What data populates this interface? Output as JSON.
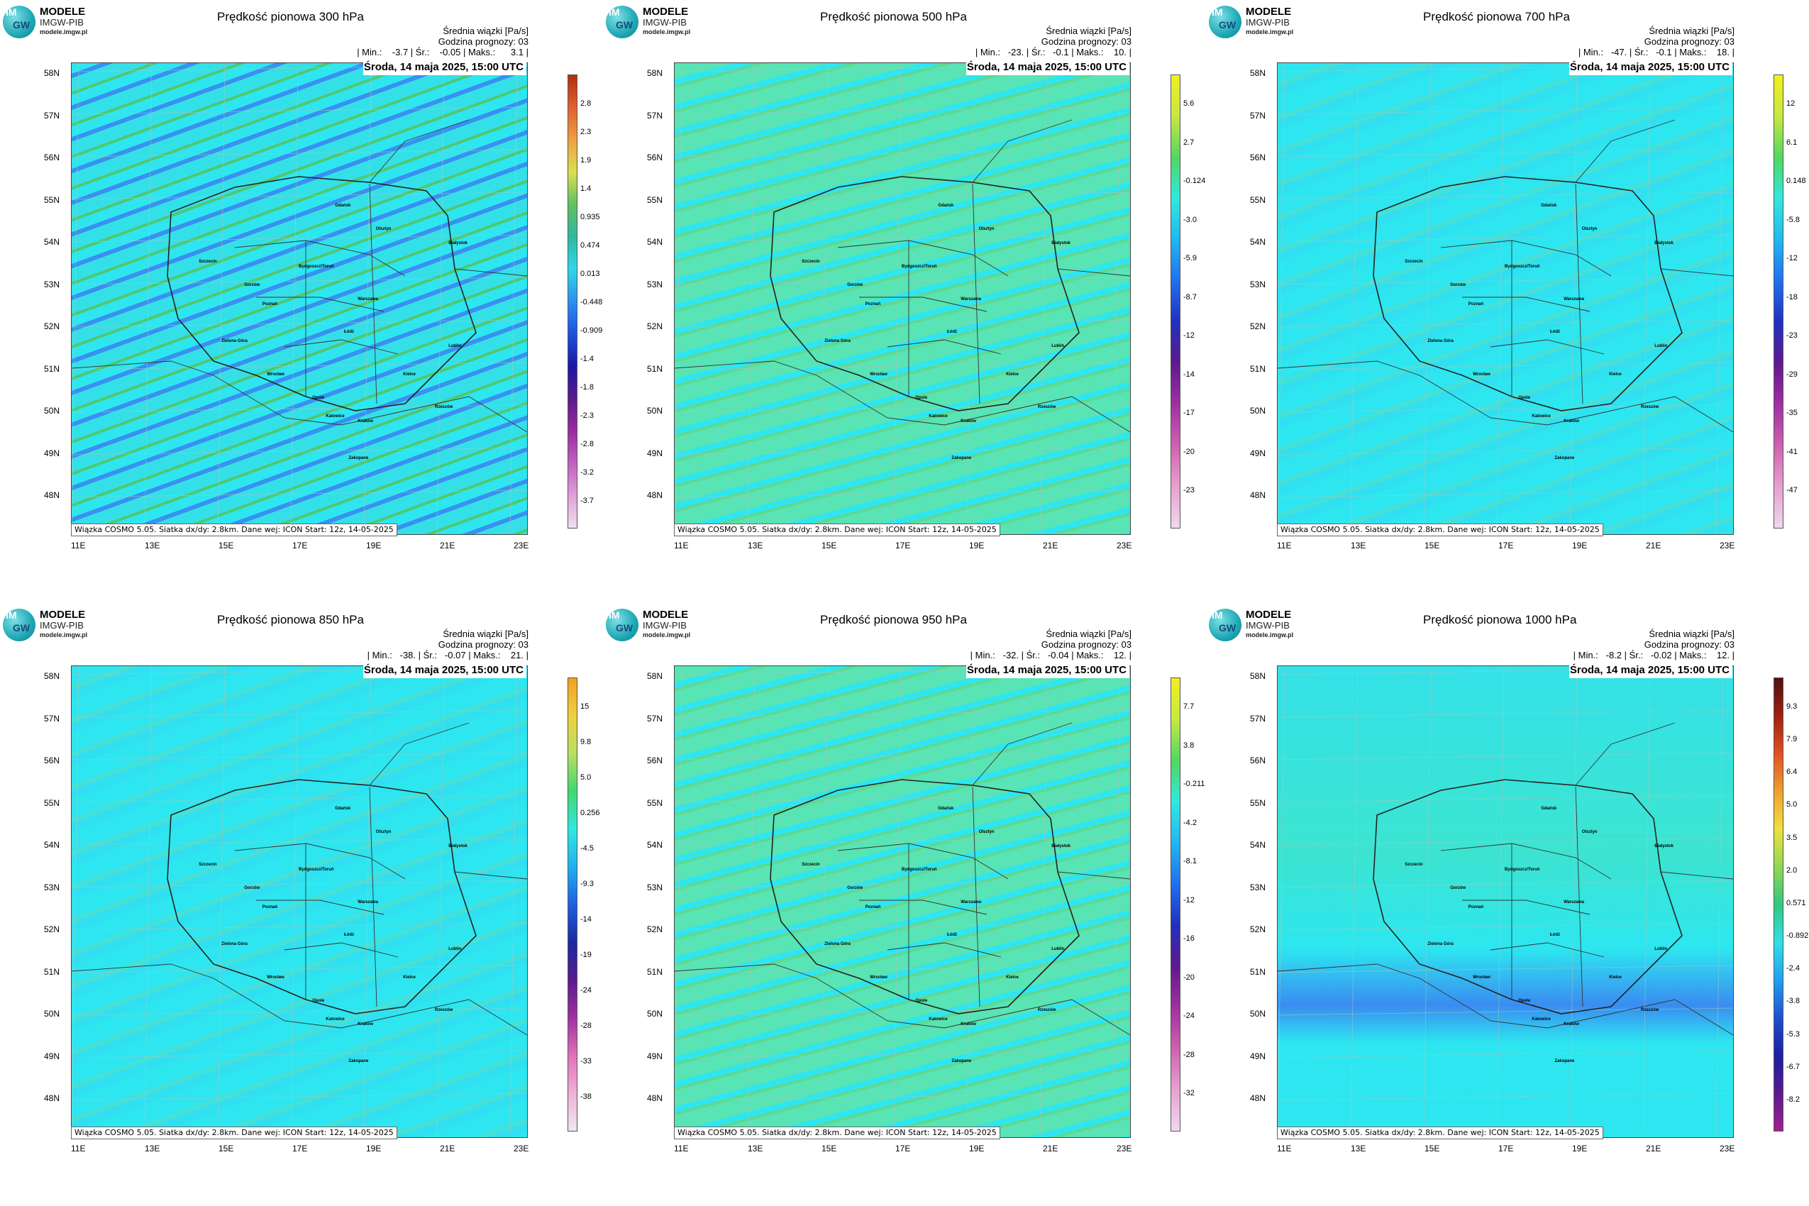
{
  "logo": {
    "top": "IM",
    "bottom": "GW",
    "brand": "MODELE",
    "org": "IMGW-PIB",
    "url": "modele.imgw.pl"
  },
  "info": {
    "line1": "Średnia wiązki [Pa/s]",
    "line2": "Godzina prognozy: 03"
  },
  "date": "Środa, 14 maja 2025, 15:00 UTC",
  "footer": "Wiązka COSMO 5.05. Siatka dx/dy: 2.8km. Dane wej: ICON Start: 12z, 14-05-2025",
  "lat_labels": [
    "58N",
    "57N",
    "56N",
    "55N",
    "54N",
    "53N",
    "52N",
    "51N",
    "50N",
    "49N",
    "48N"
  ],
  "lon_labels": [
    "11E",
    "13E",
    "15E",
    "17E",
    "19E",
    "21E",
    "23E"
  ],
  "cities": [
    "Gdańsk",
    "Szczecin",
    "Olsztyn",
    "Białystok",
    "Bydgoszcz/Toruń",
    "Gorzów",
    "Poznań",
    "Warszawa",
    "Łódź",
    "Zielona Góra",
    "Lublin",
    "Wrocław",
    "Kielce",
    "Opole",
    "Katowice",
    "Kraków",
    "Rzeszów",
    "Zakopane"
  ],
  "colors": {
    "base": "#2de6f0",
    "secondary": "#52e0b0",
    "blue": "#2b8cf2",
    "green": "#3bc46a"
  },
  "panels": [
    {
      "title": "Prędkość pionowa 300 hPa",
      "stats": "| Min.:    -3.7 | Śr.:    -0.05 | Maks.:      3.1 |",
      "ticks": [
        "2.8",
        "2.3",
        "1.9",
        "1.4",
        "0.935",
        "0.474",
        "0.013",
        "-0.448",
        "-0.909",
        "-1.4",
        "-1.8",
        "-2.3",
        "-2.8",
        "-3.2",
        "-3.7"
      ],
      "scale": "red",
      "field": "strong"
    },
    {
      "title": "Prędkość pionowa 500 hPa",
      "stats": "| Min.:   -23. | Śr.:   -0.1 | Maks.:    10. |",
      "ticks": [
        "5.6",
        "2.7",
        "-0.124",
        "-3.0",
        "-5.9",
        "-8.7",
        "-12",
        "-14",
        "-17",
        "-20",
        "-23"
      ],
      "scale": "yellow",
      "field": "green"
    },
    {
      "title": "Prędkość pionowa 700 hPa",
      "stats": "| Min.:   -47. | Śr.:   -0.1 | Maks.:    18. |",
      "ticks": [
        "12",
        "6.1",
        "0.148",
        "-5.8",
        "-12",
        "-18",
        "-23",
        "-29",
        "-35",
        "-41",
        "-47"
      ],
      "scale": "yellow",
      "field": "cyan"
    },
    {
      "title": "Prędkość pionowa 850 hPa",
      "stats": "| Min.:   -38. | Śr.:   -0.07 | Maks.:    21. |",
      "ticks": [
        "15",
        "9.8",
        "5.0",
        "0.256",
        "-4.5",
        "-9.3",
        "-14",
        "-19",
        "-24",
        "-28",
        "-33",
        "-38"
      ],
      "scale": "orange",
      "field": "cyan"
    },
    {
      "title": "Prędkość pionowa 950 hPa",
      "stats": "| Min.:   -32. | Śr.:   -0.04 | Maks.:    12. |",
      "ticks": [
        "7.7",
        "3.8",
        "-0.211",
        "-4.2",
        "-8.1",
        "-12",
        "-16",
        "-20",
        "-24",
        "-28",
        "-32"
      ],
      "scale": "yellow",
      "field": "green"
    },
    {
      "title": "Prędkość pionowa 1000 hPa",
      "stats": "| Min.:   -8.2 | Śr.:   -0.02 | Maks.:    12. |",
      "ticks": [
        "9.3",
        "7.9",
        "6.4",
        "5.0",
        "3.5",
        "2.0",
        "0.571",
        "-0.892",
        "-2.4",
        "-3.8",
        "-5.3",
        "-6.7",
        "-8.2"
      ],
      "scale": "brown",
      "field": "mixed"
    }
  ]
}
